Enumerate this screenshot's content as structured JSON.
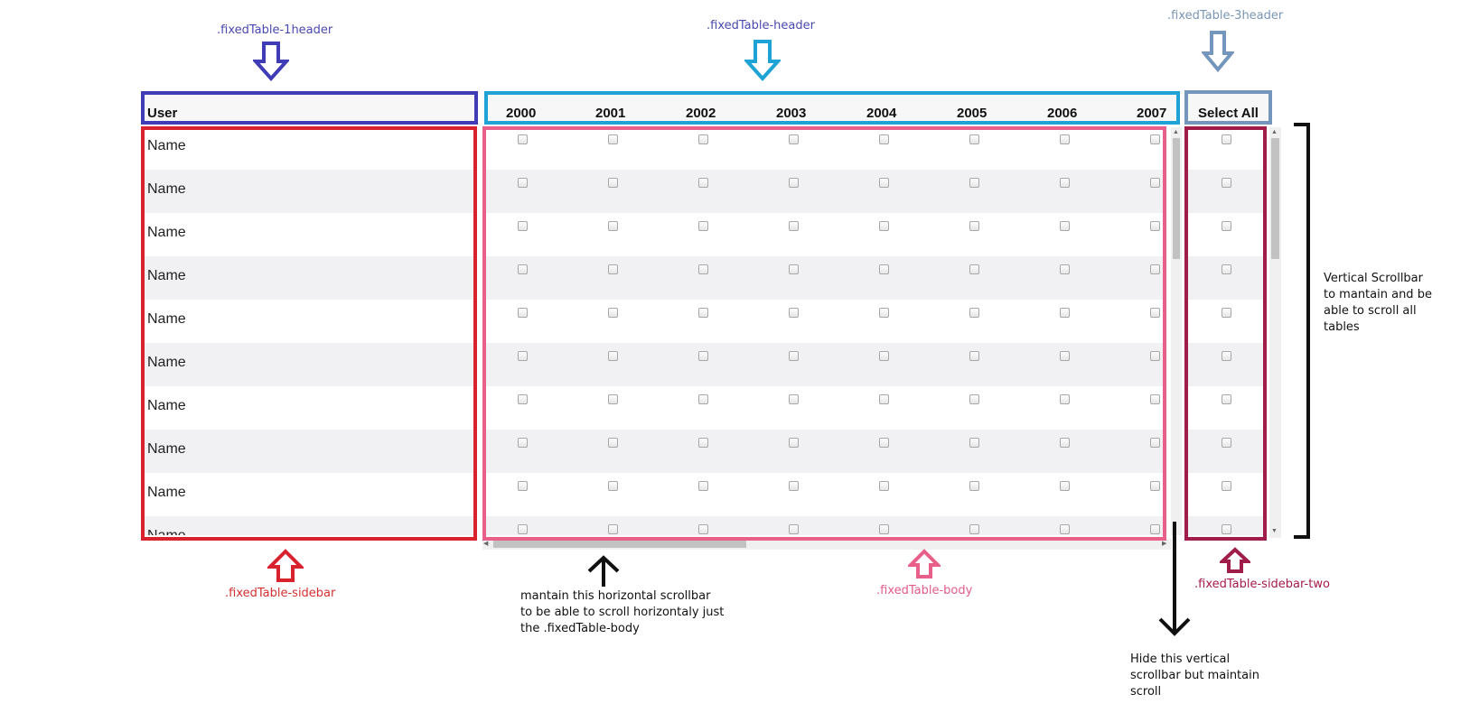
{
  "annotations": {
    "label_1header": ".fixedTable-1header",
    "label_header": ".fixedTable-header",
    "label_3header": ".fixedTable-3header",
    "label_sidebar": ".fixedTable-sidebar",
    "label_body": ".fixedTable-body",
    "label_sidebar_two": ".fixedTable-sidebar-two",
    "note_horizontal": [
      "mantain this horizontal scrollbar",
      "to be able to scroll horizontaly just",
      "the .fixedTable-body"
    ],
    "note_vertical_main": [
      "Vertical Scrollbar",
      "to mantain and be",
      "able to scroll all",
      "tables"
    ],
    "note_hide_vertical": [
      "Hide this vertical",
      "scrollbar but maintain",
      "scroll"
    ]
  },
  "table": {
    "user_header": "User",
    "years": [
      "2000",
      "2001",
      "2002",
      "2003",
      "2004",
      "2005",
      "2006",
      "2007"
    ],
    "select_all_header": "Select All",
    "rows": [
      "Name",
      "Name",
      "Name",
      "Name",
      "Name",
      "Name",
      "Name",
      "Name",
      "Name",
      "Name"
    ]
  },
  "colors": {
    "header_1": "#3f3cb5",
    "header_2": "#1fa3d6",
    "header_3": "#7496bd",
    "sidebar": "#d8232f",
    "body": "#e8608a",
    "sidebar_two": "#a01c49",
    "row_alt": "#f1f1f3"
  },
  "icons": {
    "down_arrow": "hollow-down-arrow-icon",
    "up_arrow": "hollow-up-arrow-icon",
    "thin_up_arrow": "up-arrow-icon",
    "thin_down_arrow": "down-arrow-icon",
    "bracket": "right-bracket-icon",
    "checkbox": "checkbox-icon"
  }
}
